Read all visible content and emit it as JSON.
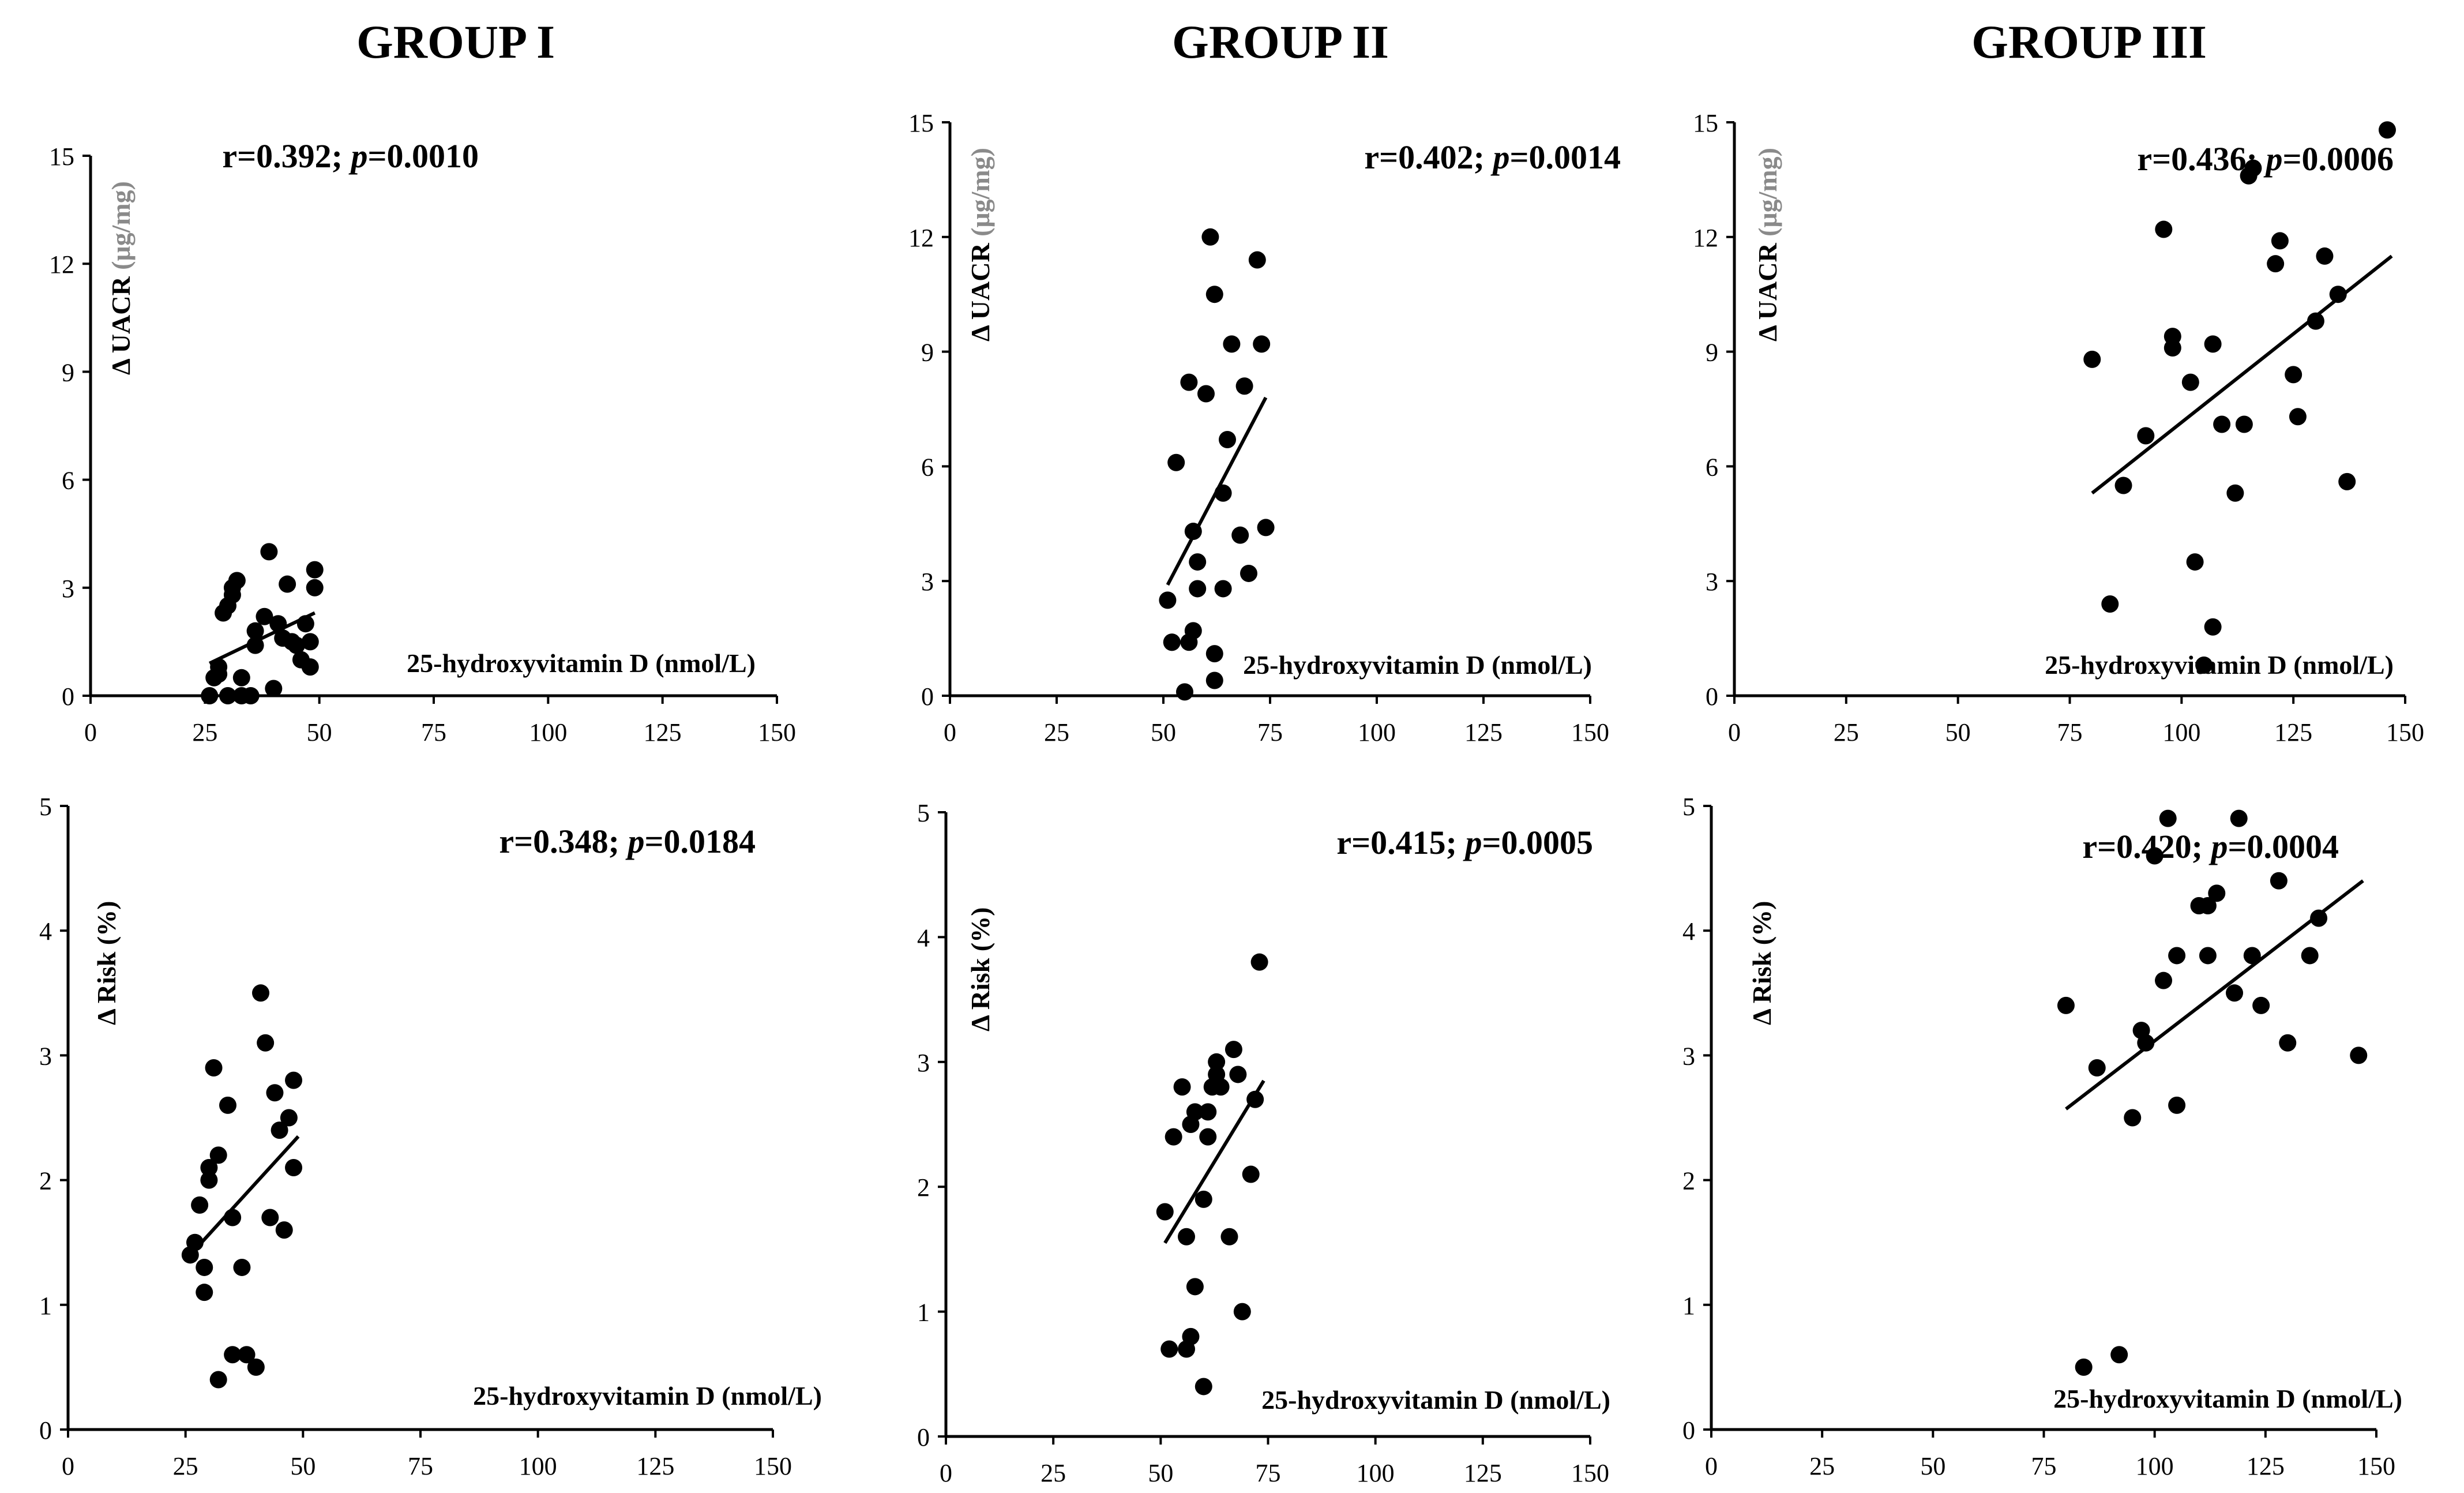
{
  "figure": {
    "groups": [
      "GROUP I",
      "GROUP II",
      "GROUP III"
    ]
  },
  "chart_data": [
    {
      "id": "uacr-g1",
      "type": "scatter",
      "group": "GROUP I",
      "ylabel_prefix": "Δ UACR ",
      "ylabel_unit": "(μg/mg)",
      "xlabel": "25-hydroxyvitamin D (nmol/L)",
      "stat": {
        "r_text": "r=0.392; ",
        "p_symbol": "p",
        "p_text": "=0.0010"
      },
      "xlim": [
        0,
        150
      ],
      "ylim": [
        0,
        15
      ],
      "xticks": [
        0,
        25,
        50,
        75,
        100,
        125,
        150
      ],
      "yticks": [
        0,
        3,
        6,
        9,
        12,
        15
      ],
      "trend": {
        "x": [
          26,
          49
        ],
        "y": [
          0.9,
          2.3
        ]
      },
      "points": [
        [
          26,
          0.0
        ],
        [
          27,
          0.5
        ],
        [
          28,
          0.6
        ],
        [
          28,
          0.8
        ],
        [
          29,
          2.3
        ],
        [
          30,
          0.0
        ],
        [
          30,
          2.5
        ],
        [
          31,
          2.8
        ],
        [
          31,
          3.0
        ],
        [
          32,
          3.2
        ],
        [
          33,
          0.0
        ],
        [
          33,
          0.5
        ],
        [
          35,
          0.0
        ],
        [
          36,
          1.4
        ],
        [
          36,
          1.8
        ],
        [
          38,
          2.2
        ],
        [
          39,
          4.0
        ],
        [
          40,
          0.2
        ],
        [
          41,
          2.0
        ],
        [
          42,
          1.6
        ],
        [
          43,
          3.1
        ],
        [
          44,
          1.5
        ],
        [
          45,
          1.4
        ],
        [
          46,
          1.0
        ],
        [
          47,
          2.0
        ],
        [
          48,
          1.5
        ],
        [
          48,
          0.8
        ],
        [
          49,
          3.0
        ],
        [
          49,
          3.5
        ]
      ]
    },
    {
      "id": "uacr-g2",
      "type": "scatter",
      "group": "GROUP II",
      "ylabel_prefix": "Δ UACR ",
      "ylabel_unit": "(μg/mg)",
      "xlabel": "25-hydroxyvitamin D (nmol/L)",
      "stat": {
        "r_text": "r=0.402; ",
        "p_symbol": "p",
        "p_text": "=0.0014"
      },
      "xlim": [
        0,
        150
      ],
      "ylim": [
        0,
        15
      ],
      "xticks": [
        0,
        25,
        50,
        75,
        100,
        125,
        150
      ],
      "yticks": [
        0,
        3,
        6,
        9,
        12,
        15
      ],
      "trend": {
        "x": [
          51,
          74
        ],
        "y": [
          2.9,
          7.8
        ]
      },
      "points": [
        [
          51,
          2.5
        ],
        [
          52,
          1.4
        ],
        [
          53,
          6.1
        ],
        [
          55,
          0.1
        ],
        [
          56,
          8.2
        ],
        [
          56,
          1.4
        ],
        [
          57,
          1.7
        ],
        [
          57,
          4.3
        ],
        [
          58,
          3.5
        ],
        [
          58,
          2.8
        ],
        [
          60,
          7.9
        ],
        [
          61,
          12.0
        ],
        [
          62,
          10.5
        ],
        [
          62,
          1.1
        ],
        [
          62,
          0.4
        ],
        [
          64,
          5.3
        ],
        [
          64,
          2.8
        ],
        [
          65,
          6.7
        ],
        [
          66,
          9.2
        ],
        [
          68,
          4.2
        ],
        [
          69,
          8.1
        ],
        [
          70,
          3.2
        ],
        [
          72,
          11.4
        ],
        [
          73,
          9.2
        ],
        [
          74,
          4.4
        ],
        [
          52,
          1.4
        ]
      ]
    },
    {
      "id": "uacr-g3",
      "type": "scatter",
      "group": "GROUP III",
      "ylabel_prefix": "Δ UACR ",
      "ylabel_unit": "(μg/mg)",
      "xlabel": "25-hydroxyvitamin D (nmol/L)",
      "stat": {
        "r_text": "r=0.436; ",
        "p_symbol": "p",
        "p_text": "=0.0006"
      },
      "xlim": [
        0,
        150
      ],
      "ylim": [
        0,
        15
      ],
      "xticks": [
        0,
        25,
        50,
        75,
        100,
        125,
        150
      ],
      "yticks": [
        0,
        3,
        6,
        9,
        12,
        15
      ],
      "trend": {
        "x": [
          80,
          147
        ],
        "y": [
          5.3,
          11.5
        ]
      },
      "points": [
        [
          80,
          8.8
        ],
        [
          84,
          2.4
        ],
        [
          87,
          5.5
        ],
        [
          92,
          6.8
        ],
        [
          96,
          12.2
        ],
        [
          98,
          9.4
        ],
        [
          98,
          9.1
        ],
        [
          102,
          8.2
        ],
        [
          103,
          3.5
        ],
        [
          105,
          0.8
        ],
        [
          107,
          1.8
        ],
        [
          107,
          9.2
        ],
        [
          109,
          7.1
        ],
        [
          112,
          5.3
        ],
        [
          114,
          7.1
        ],
        [
          115,
          13.6
        ],
        [
          116,
          13.8
        ],
        [
          121,
          11.3
        ],
        [
          122,
          11.9
        ],
        [
          125,
          8.4
        ],
        [
          126,
          7.3
        ],
        [
          130,
          9.8
        ],
        [
          132,
          11.5
        ],
        [
          135,
          10.5
        ],
        [
          137,
          5.6
        ],
        [
          146,
          14.8
        ]
      ]
    },
    {
      "id": "risk-g1",
      "type": "scatter",
      "group": "GROUP I",
      "ylabel_prefix": "Δ Risk (%)",
      "ylabel_unit": "",
      "xlabel": "25-hydroxyvitamin D (nmol/L)",
      "stat": {
        "r_text": "r=0.348; ",
        "p_symbol": "p",
        "p_text": "=0.0184"
      },
      "xlim": [
        0,
        150
      ],
      "ylim": [
        0,
        5
      ],
      "xticks": [
        0,
        25,
        50,
        75,
        100,
        125,
        150
      ],
      "yticks": [
        0,
        1,
        2,
        3,
        4,
        5
      ],
      "trend": {
        "x": [
          26,
          49
        ],
        "y": [
          1.4,
          2.35
        ]
      },
      "points": [
        [
          26,
          1.4
        ],
        [
          27,
          1.5
        ],
        [
          28,
          1.8
        ],
        [
          29,
          1.3
        ],
        [
          29,
          1.1
        ],
        [
          30,
          2.0
        ],
        [
          30,
          2.1
        ],
        [
          31,
          2.9
        ],
        [
          32,
          2.2
        ],
        [
          32,
          0.4
        ],
        [
          34,
          2.6
        ],
        [
          35,
          0.6
        ],
        [
          35,
          1.7
        ],
        [
          37,
          1.3
        ],
        [
          38,
          0.6
        ],
        [
          40,
          0.5
        ],
        [
          41,
          3.5
        ],
        [
          42,
          3.1
        ],
        [
          43,
          1.7
        ],
        [
          44,
          2.7
        ],
        [
          45,
          2.4
        ],
        [
          46,
          1.6
        ],
        [
          47,
          2.5
        ],
        [
          48,
          2.8
        ],
        [
          48,
          2.1
        ]
      ]
    },
    {
      "id": "risk-g2",
      "type": "scatter",
      "group": "GROUP II",
      "ylabel_prefix": "Δ Risk (%)",
      "ylabel_unit": "",
      "xlabel": "25-hydroxyvitamin D (nmol/L)",
      "stat": {
        "r_text": "r=0.415; ",
        "p_symbol": "p",
        "p_text": "=0.0005"
      },
      "xlim": [
        0,
        150
      ],
      "ylim": [
        0,
        5
      ],
      "xticks": [
        0,
        25,
        50,
        75,
        100,
        125,
        150
      ],
      "yticks": [
        0,
        1,
        2,
        3,
        4,
        5
      ],
      "trend": {
        "x": [
          51,
          74
        ],
        "y": [
          1.55,
          2.85
        ]
      },
      "points": [
        [
          51,
          1.8
        ],
        [
          52,
          0.7
        ],
        [
          53,
          2.4
        ],
        [
          55,
          2.8
        ],
        [
          56,
          1.6
        ],
        [
          56,
          0.7
        ],
        [
          57,
          0.8
        ],
        [
          57,
          2.5
        ],
        [
          58,
          1.2
        ],
        [
          58,
          2.6
        ],
        [
          60,
          0.4
        ],
        [
          60,
          1.9
        ],
        [
          61,
          2.6
        ],
        [
          61,
          2.4
        ],
        [
          62,
          2.8
        ],
        [
          63,
          2.9
        ],
        [
          63,
          3.0
        ],
        [
          64,
          2.8
        ],
        [
          66,
          1.6
        ],
        [
          67,
          3.1
        ],
        [
          68,
          2.9
        ],
        [
          69,
          1.0
        ],
        [
          71,
          2.1
        ],
        [
          72,
          2.7
        ],
        [
          73,
          3.8
        ]
      ]
    },
    {
      "id": "risk-g3",
      "type": "scatter",
      "group": "GROUP III",
      "ylabel_prefix": "Δ Risk (%)",
      "ylabel_unit": "",
      "xlabel": "25-hydroxyvitamin D (nmol/L)",
      "stat": {
        "r_text": "r=0.420; ",
        "p_symbol": "p",
        "p_text": "=0.0004"
      },
      "xlim": [
        0,
        150
      ],
      "ylim": [
        0,
        5
      ],
      "xticks": [
        0,
        25,
        50,
        75,
        100,
        125,
        150
      ],
      "yticks": [
        0,
        1,
        2,
        3,
        4,
        5
      ],
      "trend": {
        "x": [
          80,
          147
        ],
        "y": [
          2.57,
          4.4
        ]
      },
      "points": [
        [
          80,
          3.4
        ],
        [
          84,
          0.5
        ],
        [
          87,
          2.9
        ],
        [
          92,
          0.6
        ],
        [
          95,
          2.5
        ],
        [
          97,
          3.2
        ],
        [
          98,
          3.1
        ],
        [
          100,
          4.6
        ],
        [
          102,
          3.6
        ],
        [
          103,
          4.9
        ],
        [
          105,
          3.8
        ],
        [
          105,
          2.6
        ],
        [
          110,
          4.2
        ],
        [
          112,
          4.2
        ],
        [
          112,
          3.8
        ],
        [
          114,
          4.3
        ],
        [
          118,
          3.5
        ],
        [
          119,
          4.9
        ],
        [
          122,
          3.8
        ],
        [
          124,
          3.4
        ],
        [
          128,
          4.4
        ],
        [
          130,
          3.1
        ],
        [
          135,
          3.8
        ],
        [
          137,
          4.1
        ],
        [
          146,
          3.0
        ]
      ]
    }
  ]
}
